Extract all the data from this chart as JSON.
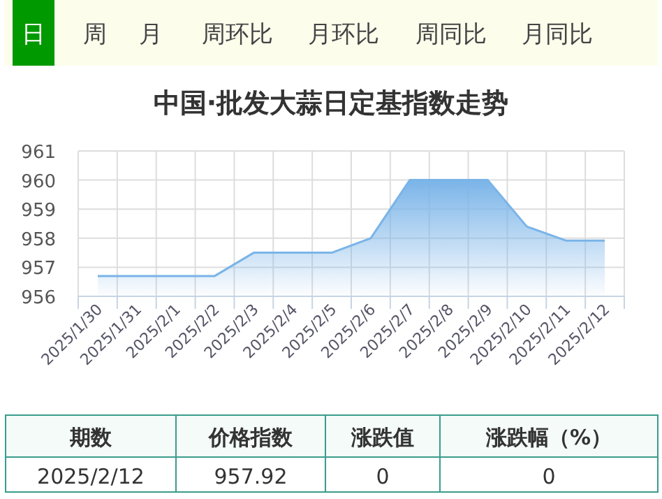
{
  "chart_data": [
    {
      "type": "line",
      "title": "中国·批发大蒜日定基指数走势",
      "categories": [
        "2025/1/30",
        "2025/1/31",
        "2025/2/1",
        "2025/2/2",
        "2025/2/3",
        "2025/2/4",
        "2025/2/5",
        "2025/2/6",
        "2025/2/7",
        "2025/2/8",
        "2025/2/9",
        "2025/2/10",
        "2025/2/11",
        "2025/2/12"
      ],
      "series": [
        {
          "type": "area",
          "color": "#7ab4e8",
          "values": [
            956.7,
            956.7,
            956.7,
            956.7,
            957.5,
            957.5,
            957.5,
            958.0,
            960.0,
            960.0,
            960.0,
            958.4,
            957.92,
            957.92
          ]
        }
      ],
      "ylim": [
        956,
        961
      ],
      "yticks": [
        956,
        957,
        958,
        959,
        960,
        961
      ],
      "grid": true,
      "marker": "none"
    },
    {
      "type": "other",
      "annotations": [
        "日",
        "周",
        "月",
        "周环比",
        "月环比",
        "周同比",
        "月同比",
        "期数",
        "价格指数",
        "涨跌值",
        "涨跌幅（%）",
        "2025/2/12",
        "957.92",
        "0",
        "0"
      ]
    }
  ]
}
